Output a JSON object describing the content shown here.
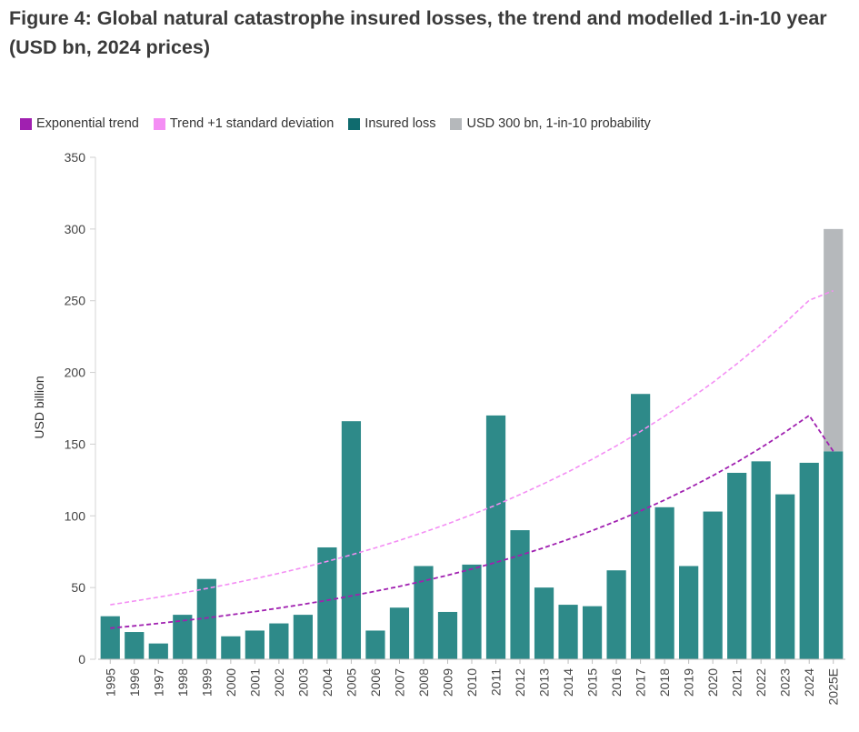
{
  "title": "Figure 4: Global natural catastrophe insured losses, the trend and modelled 1-in-10 year (USD bn, 2024 prices)",
  "legend": [
    {
      "label": "Exponential trend",
      "color": "#a020b0"
    },
    {
      "label": "Trend +1 standard deviation",
      "color": "#f48ef4"
    },
    {
      "label": "Insured loss",
      "color": "#0f6b6e"
    },
    {
      "label": "USD 300 bn, 1-in-10 probability",
      "color": "#b5b8bb"
    }
  ],
  "chart_data": {
    "type": "bar",
    "title": "Figure 4: Global natural catastrophe insured losses, the trend and modelled 1-in-10 year (USD bn, 2024 prices)",
    "ylabel": "USD billion",
    "xlabel": "",
    "ylim": [
      0,
      350
    ],
    "yticks": [
      0,
      50,
      100,
      150,
      200,
      250,
      300,
      350
    ],
    "grid": false,
    "legend_position": "top-left",
    "categories": [
      "1995",
      "1996",
      "1997",
      "1998",
      "1999",
      "2000",
      "2001",
      "2002",
      "2003",
      "2004",
      "2005",
      "2006",
      "2007",
      "2008",
      "2009",
      "2010",
      "2011",
      "2012",
      "2013",
      "2014",
      "2015",
      "2016",
      "2017",
      "2018",
      "2019",
      "2020",
      "2021",
      "2022",
      "2023",
      "2024",
      "2025E"
    ],
    "series": [
      {
        "name": "Insured loss",
        "type": "bar",
        "color": "#2e8a89",
        "values": [
          30,
          19,
          11,
          31,
          56,
          16,
          20,
          25,
          31,
          78,
          166,
          20,
          36,
          65,
          33,
          66,
          170,
          90,
          50,
          38,
          37,
          62,
          185,
          106,
          65,
          103,
          130,
          138,
          115,
          137,
          145
        ]
      },
      {
        "name": "USD 300 bn, 1-in-10 probability",
        "type": "stacked-bar",
        "color": "#b5b8bb",
        "category": "2025E",
        "base": 145,
        "top": 300
      },
      {
        "name": "Exponential trend",
        "type": "line",
        "style": "dashed",
        "color": "#a020b0",
        "values": [
          21.7,
          23.3,
          25.0,
          26.9,
          28.8,
          31.0,
          33.2,
          35.7,
          38.3,
          41.1,
          44.1,
          47.4,
          50.8,
          54.6,
          58.6,
          62.9,
          67.5,
          72.5,
          77.8,
          83.6,
          89.7,
          96.3,
          103.4,
          111.0,
          119.2,
          128.0,
          137.4,
          147.5,
          158.4,
          170.0,
          145.0
        ]
      },
      {
        "name": "Trend +1 standard deviation",
        "type": "line",
        "style": "dashed",
        "color": "#f48ef4",
        "values": [
          38,
          40.6,
          43.3,
          46.2,
          49.3,
          52.6,
          56.2,
          59.9,
          63.9,
          68.2,
          72.8,
          77.7,
          82.9,
          88.5,
          94.4,
          100.8,
          107.5,
          114.8,
          122.5,
          130.7,
          139.5,
          148.8,
          158.8,
          169.5,
          180.9,
          193.0,
          206.0,
          219.8,
          234.6,
          250.3,
          257.0
        ]
      }
    ]
  }
}
